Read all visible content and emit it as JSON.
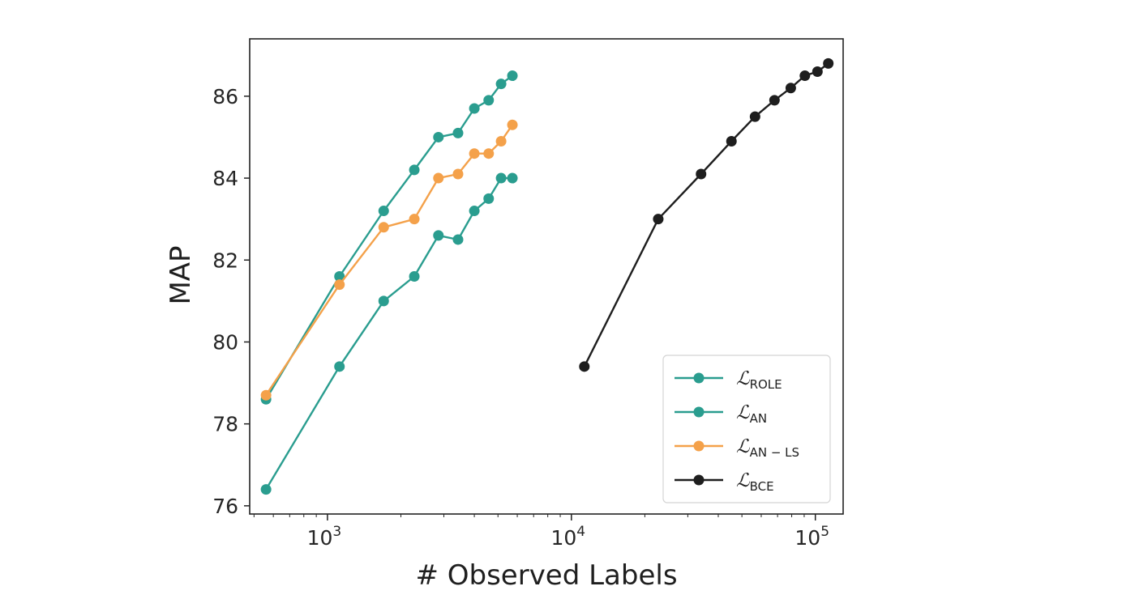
{
  "chart_data": {
    "type": "line",
    "xlabel": "# Observed Labels",
    "ylabel": "MAP",
    "x_scale": "log",
    "xlim": [
      480,
      130000
    ],
    "ylim": [
      75.8,
      87.4
    ],
    "x_ticks": [
      {
        "value": 1000,
        "base": "10",
        "exp": "3"
      },
      {
        "value": 10000,
        "base": "10",
        "exp": "4"
      },
      {
        "value": 100000,
        "base": "10",
        "exp": "5"
      }
    ],
    "y_ticks": [
      {
        "value": 76,
        "label": "76"
      },
      {
        "value": 78,
        "label": "78"
      },
      {
        "value": 80,
        "label": "80"
      },
      {
        "value": 82,
        "label": "82"
      },
      {
        "value": 84,
        "label": "84"
      },
      {
        "value": 86,
        "label": "86"
      }
    ],
    "grid": false,
    "legend_position": "bottom-right",
    "series": [
      {
        "name": "ROLE",
        "legend_main": "ℒ",
        "legend_sub": "ROLE",
        "color": "#2a9d8f",
        "x": [
          560,
          1120,
          1700,
          2270,
          2850,
          3430,
          4000,
          4580,
          5150,
          5730
        ],
        "y": [
          78.6,
          81.6,
          83.2,
          84.2,
          85.0,
          85.1,
          85.7,
          85.9,
          86.3,
          86.5
        ]
      },
      {
        "name": "AN",
        "legend_main": "ℒ",
        "legend_sub": "AN",
        "color": "#2a9d8f",
        "x": [
          560,
          1120,
          1700,
          2270,
          2850,
          3430,
          4000,
          4580,
          5150,
          5730
        ],
        "y": [
          76.4,
          79.4,
          81.0,
          81.6,
          82.6,
          82.5,
          83.2,
          83.5,
          84.0,
          84.0
        ]
      },
      {
        "name": "AN-LS",
        "legend_main": "ℒ",
        "legend_sub": "AN − LS",
        "color": "#f4a14a",
        "x": [
          560,
          1120,
          1700,
          2270,
          2850,
          3430,
          4000,
          4580,
          5150,
          5730
        ],
        "y": [
          78.7,
          81.4,
          82.8,
          83.0,
          84.0,
          84.1,
          84.6,
          84.6,
          84.9,
          85.3
        ]
      },
      {
        "name": "BCE",
        "legend_main": "ℒ",
        "legend_sub": "BCE",
        "color": "#1e1e1e",
        "x": [
          11300,
          22700,
          34000,
          45300,
          56600,
          68000,
          79300,
          90600,
          102000,
          113000
        ],
        "y": [
          79.4,
          83.0,
          84.1,
          84.9,
          85.5,
          85.9,
          86.2,
          86.5,
          86.6,
          86.8
        ]
      }
    ]
  }
}
